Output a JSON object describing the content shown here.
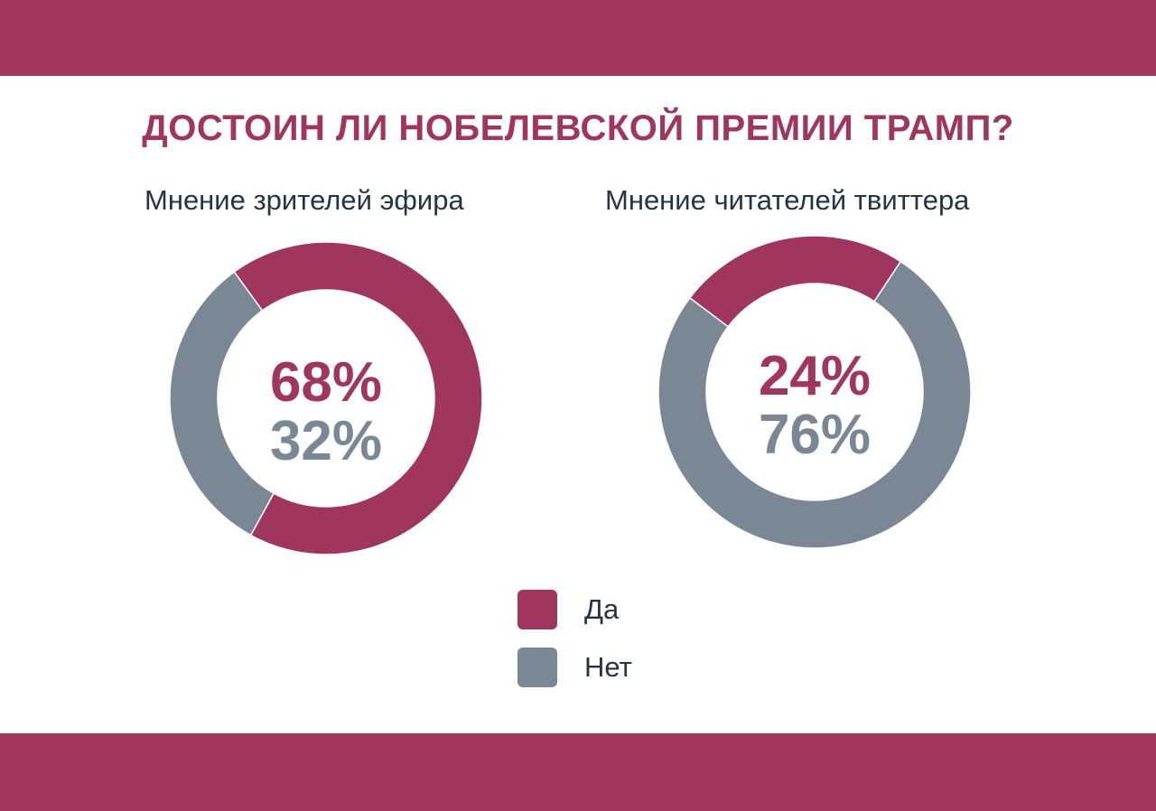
{
  "colors": {
    "accent": "#a0355f",
    "gray": "#7a8896",
    "text": "#243447"
  },
  "chart_data": {
    "title": "ДОСТОИН ЛИ НОБЕЛЕВСКОЙ ПРЕМИИ ТРАМП?",
    "legend": [
      {
        "label": "Да",
        "color": "#a0355f"
      },
      {
        "label": "Нет",
        "color": "#7a8896"
      }
    ],
    "charts": [
      {
        "type": "pie",
        "subtitle": "Мнение зрителей эфира",
        "categories": [
          "Да",
          "Нет"
        ],
        "values": [
          68,
          32
        ],
        "labels": [
          "68%",
          "32%"
        ]
      },
      {
        "type": "pie",
        "subtitle": "Мнение читателей твиттера",
        "categories": [
          "Да",
          "Нет"
        ],
        "values": [
          24,
          76
        ],
        "labels": [
          "24%",
          "76%"
        ]
      }
    ]
  }
}
